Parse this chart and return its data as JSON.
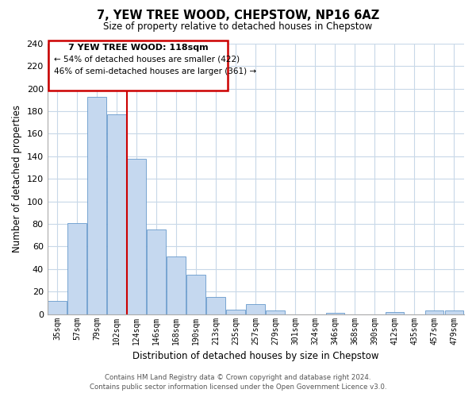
{
  "title": "7, YEW TREE WOOD, CHEPSTOW, NP16 6AZ",
  "subtitle": "Size of property relative to detached houses in Chepstow",
  "xlabel": "Distribution of detached houses by size in Chepstow",
  "ylabel": "Number of detached properties",
  "bar_labels": [
    "35sqm",
    "57sqm",
    "79sqm",
    "102sqm",
    "124sqm",
    "146sqm",
    "168sqm",
    "190sqm",
    "213sqm",
    "235sqm",
    "257sqm",
    "279sqm",
    "301sqm",
    "324sqm",
    "346sqm",
    "368sqm",
    "390sqm",
    "412sqm",
    "435sqm",
    "457sqm",
    "479sqm"
  ],
  "bar_values": [
    12,
    81,
    193,
    177,
    138,
    75,
    51,
    35,
    15,
    4,
    9,
    3,
    0,
    0,
    1,
    0,
    0,
    2,
    0,
    3,
    3
  ],
  "bar_color": "#c5d8ef",
  "bar_edge_color": "#6699cc",
  "vline_color": "#cc0000",
  "ylim": [
    0,
    240
  ],
  "yticks": [
    0,
    20,
    40,
    60,
    80,
    100,
    120,
    140,
    160,
    180,
    200,
    220,
    240
  ],
  "annotation_title": "7 YEW TREE WOOD: 118sqm",
  "annotation_line1": "← 54% of detached houses are smaller (422)",
  "annotation_line2": "46% of semi-detached houses are larger (361) →",
  "footer_line1": "Contains HM Land Registry data © Crown copyright and database right 2024.",
  "footer_line2": "Contains public sector information licensed under the Open Government Licence v3.0.",
  "background_color": "#ffffff",
  "grid_color": "#c8d8e8"
}
